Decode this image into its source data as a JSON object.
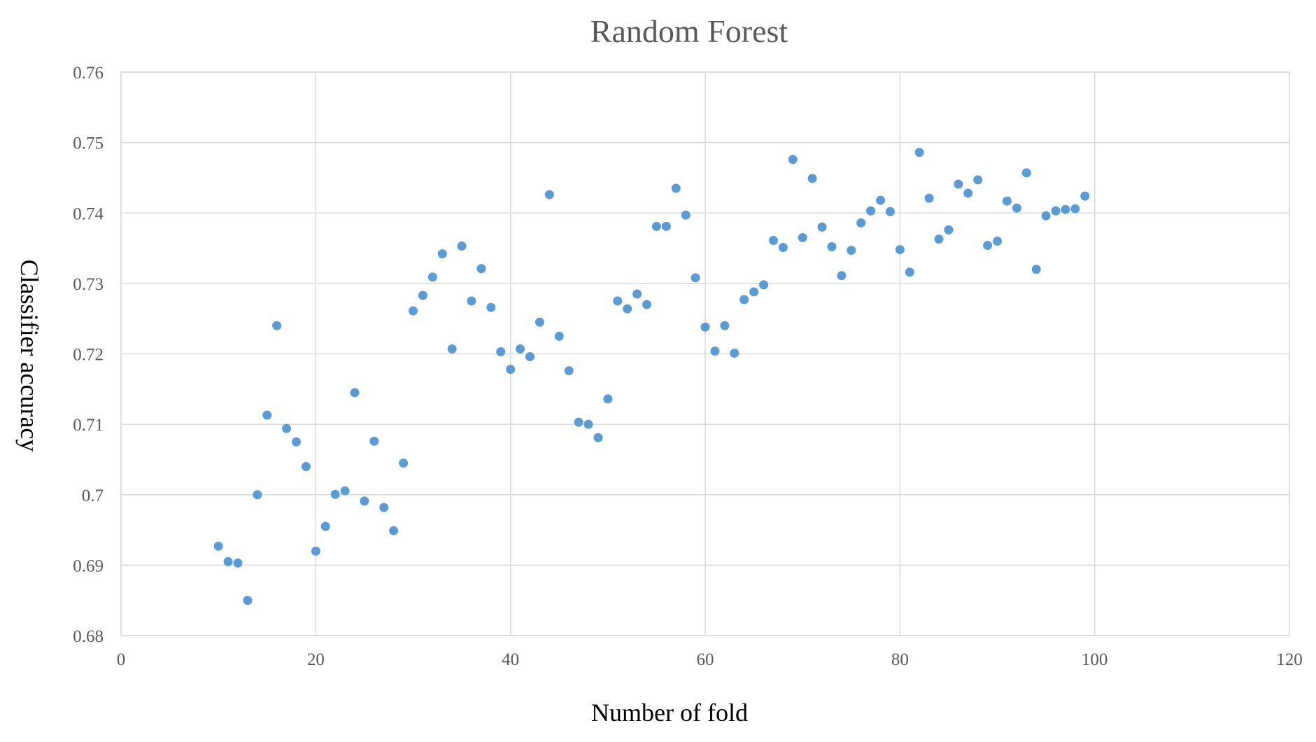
{
  "chart_data": {
    "type": "scatter",
    "title": "Random Forest",
    "xlabel": "Number of fold",
    "ylabel": "Classifier accuracy",
    "xlim": [
      0,
      120
    ],
    "ylim": [
      0.68,
      0.76
    ],
    "x_ticks": [
      0,
      20,
      40,
      60,
      80,
      100,
      120
    ],
    "y_ticks": [
      0.68,
      0.69,
      0.7,
      0.71,
      0.72,
      0.73,
      0.74,
      0.75,
      0.76
    ],
    "x_tick_labels": [
      "0",
      "20",
      "40",
      "60",
      "80",
      "100",
      "120"
    ],
    "y_tick_labels": [
      "0.68",
      "0.69",
      "0.7",
      "0.71",
      "0.72",
      "0.73",
      "0.74",
      "0.75",
      "0.76"
    ],
    "grid": true,
    "legend": "none",
    "marker_color": "#5b9bd5",
    "series": [
      {
        "x": [
          10,
          11,
          12,
          13,
          14,
          15,
          16,
          17,
          18,
          19,
          20,
          21,
          22,
          23,
          24,
          25,
          26,
          27,
          28,
          29,
          30,
          31,
          32,
          33,
          34,
          35,
          36,
          37,
          38,
          39,
          40,
          41,
          42,
          43,
          44,
          45,
          46,
          47,
          48,
          49,
          50,
          51,
          52,
          53,
          54,
          55,
          56,
          57,
          58,
          59,
          60,
          61,
          62,
          63,
          64,
          65,
          66,
          67,
          68,
          69,
          70,
          71,
          72,
          73,
          74,
          75,
          76,
          77,
          78,
          79,
          80,
          81,
          82,
          83,
          84,
          85,
          86,
          87,
          88,
          89,
          90,
          91,
          92,
          93,
          94,
          95,
          96,
          97,
          98,
          99
        ],
        "y": [
          0.6927,
          0.6905,
          0.6903,
          0.685,
          0.7,
          0.7113,
          0.724,
          0.7094,
          0.7075,
          0.704,
          0.692,
          0.6955,
          0.70005,
          0.70055,
          0.7145,
          0.6991,
          0.7076,
          0.6982,
          0.6949,
          0.7045,
          0.7261,
          0.7283,
          0.7309,
          0.7342,
          0.7207,
          0.7353,
          0.7275,
          0.7321,
          0.7266,
          0.7203,
          0.7178,
          0.7207,
          0.7196,
          0.7245,
          0.7426,
          0.7225,
          0.7176,
          0.7103,
          0.71,
          0.7081,
          0.7136,
          0.7275,
          0.7264,
          0.7285,
          0.727,
          0.7381,
          0.7381,
          0.7435,
          0.7397,
          0.7308,
          0.7238,
          0.7204,
          0.724,
          0.7201,
          0.7277,
          0.7288,
          0.7298,
          0.7361,
          0.7351,
          0.7476,
          0.7365,
          0.7449,
          0.738,
          0.7352,
          0.7311,
          0.7347,
          0.7386,
          0.7403,
          0.7418,
          0.7402,
          0.7348,
          0.7316,
          0.7486,
          0.7421,
          0.7363,
          0.7376,
          0.7441,
          0.7428,
          0.7447,
          0.7354,
          0.736,
          0.7417,
          0.7407,
          0.7457,
          0.732,
          0.7396,
          0.7403,
          0.7405,
          0.7406,
          0.7424
        ]
      }
    ]
  }
}
